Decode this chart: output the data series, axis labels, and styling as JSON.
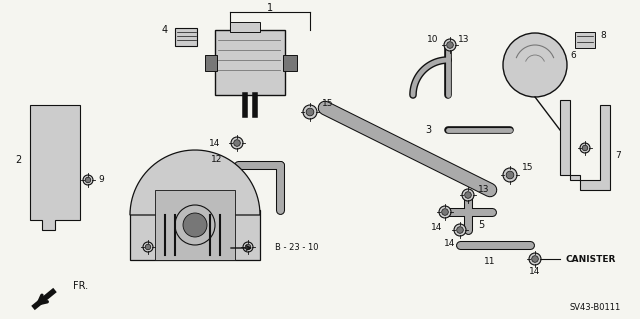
{
  "background_color": "#f5f5f0",
  "diagram_code": "SV43-B0111",
  "canister_label": "CANISTER",
  "fr_label": "FR.",
  "b_label": "B - 23 - 10",
  "dark": "#111111",
  "gray": "#999999",
  "lgray": "#cccccc",
  "mgray": "#777777"
}
